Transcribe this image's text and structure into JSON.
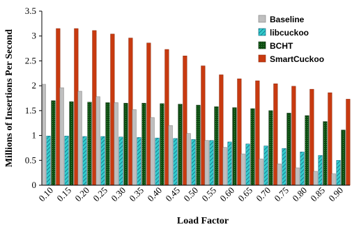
{
  "chart_data": {
    "type": "bar",
    "xlabel": "Load Factor",
    "ylabel": "Millions of Insertions Per Second",
    "ylim": [
      0,
      3.5
    ],
    "yticks": [
      "0",
      "0.5",
      "1",
      "1.5",
      "2",
      "2.5",
      "3",
      "3.5"
    ],
    "grid": false,
    "legend_position": "top-right",
    "categories": [
      "0.10",
      "0.15",
      "0.20",
      "0.25",
      "0.30",
      "0.35",
      "0.40",
      "0.45",
      "0.50",
      "0.55",
      "0.60",
      "0.65",
      "0.70",
      "0.75",
      "0.80",
      "0.85",
      "0.90"
    ],
    "series": [
      {
        "name": "Baseline",
        "color": "#bfbfbf",
        "values": [
          2.03,
          1.96,
          1.89,
          1.78,
          1.66,
          1.52,
          1.36,
          1.2,
          1.04,
          0.9,
          0.76,
          0.63,
          0.53,
          0.43,
          0.35,
          0.28,
          0.23
        ]
      },
      {
        "name": "libcuckoo",
        "color": "#33cccc",
        "values": [
          0.99,
          0.99,
          0.98,
          0.98,
          0.97,
          0.96,
          0.95,
          0.94,
          0.92,
          0.9,
          0.87,
          0.83,
          0.79,
          0.74,
          0.67,
          0.6,
          0.5
        ]
      },
      {
        "name": "BCHT",
        "color": "#0b3d0b",
        "values": [
          1.7,
          1.68,
          1.67,
          1.66,
          1.65,
          1.65,
          1.64,
          1.63,
          1.61,
          1.58,
          1.56,
          1.54,
          1.5,
          1.45,
          1.4,
          1.28,
          1.11
        ]
      },
      {
        "name": "SmartCuckoo",
        "color": "#c83a10",
        "values": [
          3.15,
          3.15,
          3.11,
          3.04,
          2.96,
          2.86,
          2.73,
          2.6,
          2.4,
          2.22,
          2.14,
          2.1,
          2.04,
          1.99,
          1.93,
          1.86,
          1.73
        ]
      }
    ]
  }
}
